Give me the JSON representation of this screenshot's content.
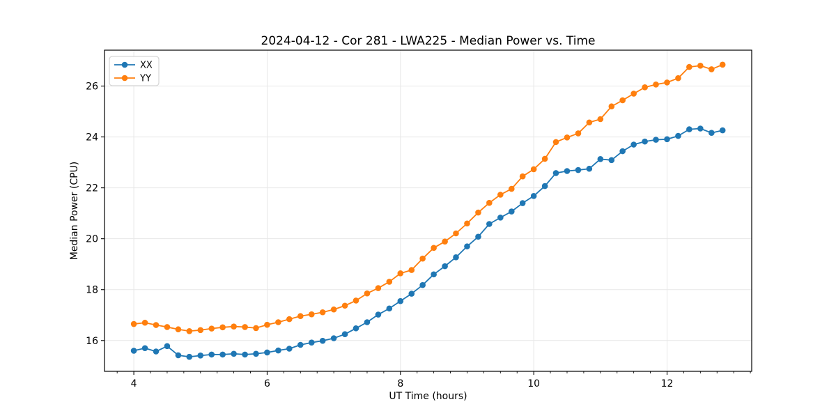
{
  "chart_data": {
    "type": "line",
    "title": "2024-04-12 - Cor 281 - LWA225 - Median Power vs. Time",
    "xlabel": "UT Time (hours)",
    "ylabel": "Median Power (CPU)",
    "xlim": [
      3.56,
      13.27
    ],
    "ylim": [
      14.79,
      27.41
    ],
    "xticks": [
      4,
      6,
      8,
      10,
      12
    ],
    "yticks": [
      16,
      18,
      20,
      22,
      24,
      26
    ],
    "x_minor_step": 0.25,
    "grid": true,
    "background": "#ffffff",
    "spine_color": "#000000",
    "grid_color": "#e7e7e7",
    "legend": {
      "position": "upper-left",
      "entries": [
        "XX",
        "YY"
      ]
    },
    "x": [
      4.0,
      4.167,
      4.333,
      4.5,
      4.667,
      4.833,
      5.0,
      5.167,
      5.333,
      5.5,
      5.667,
      5.833,
      6.0,
      6.167,
      6.333,
      6.5,
      6.667,
      6.833,
      7.0,
      7.167,
      7.333,
      7.5,
      7.667,
      7.833,
      8.0,
      8.167,
      8.333,
      8.5,
      8.667,
      8.833,
      9.0,
      9.167,
      9.333,
      9.5,
      9.667,
      9.833,
      10.0,
      10.167,
      10.333,
      10.5,
      10.667,
      10.833,
      11.0,
      11.167,
      11.333,
      11.5,
      11.667,
      11.833,
      12.0,
      12.167,
      12.333,
      12.5,
      12.667,
      12.833
    ],
    "series": [
      {
        "name": "XX",
        "color": "#1f77b4",
        "values": [
          15.6,
          15.7,
          15.57,
          15.78,
          15.42,
          15.36,
          15.41,
          15.45,
          15.45,
          15.48,
          15.45,
          15.48,
          15.53,
          15.61,
          15.68,
          15.83,
          15.92,
          15.99,
          16.09,
          16.25,
          16.48,
          16.72,
          17.02,
          17.26,
          17.55,
          17.84,
          18.18,
          18.6,
          18.92,
          19.27,
          19.7,
          20.08,
          20.58,
          20.83,
          21.07,
          21.4,
          21.68,
          22.07,
          22.58,
          22.66,
          22.7,
          22.75,
          23.13,
          23.09,
          23.44,
          23.7,
          23.82,
          23.89,
          23.91,
          24.04,
          24.3,
          24.33,
          24.16,
          24.26
        ]
      },
      {
        "name": "YY",
        "color": "#ff7f0e",
        "values": [
          16.65,
          16.7,
          16.61,
          16.53,
          16.44,
          16.37,
          16.41,
          16.47,
          16.52,
          16.55,
          16.53,
          16.49,
          16.62,
          16.72,
          16.84,
          16.96,
          17.03,
          17.11,
          17.22,
          17.37,
          17.57,
          17.85,
          18.06,
          18.31,
          18.64,
          18.77,
          19.22,
          19.64,
          19.89,
          20.21,
          20.6,
          21.03,
          21.41,
          21.73,
          21.96,
          22.45,
          22.73,
          23.14,
          23.8,
          23.98,
          24.14,
          24.57,
          24.7,
          25.2,
          25.44,
          25.7,
          25.95,
          26.06,
          26.14,
          26.31,
          26.75,
          26.8,
          26.66,
          26.84
        ]
      }
    ]
  }
}
